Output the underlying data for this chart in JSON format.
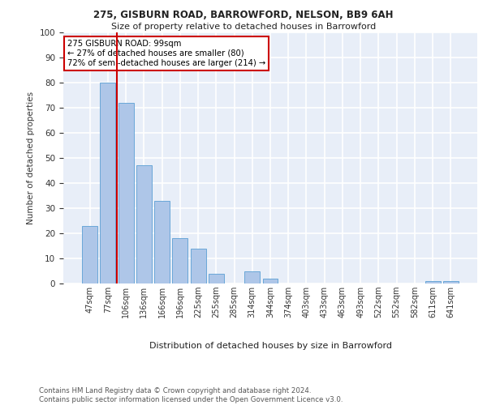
{
  "title1": "275, GISBURN ROAD, BARROWFORD, NELSON, BB9 6AH",
  "title2": "Size of property relative to detached houses in Barrowford",
  "xlabel": "Distribution of detached houses by size in Barrowford",
  "ylabel": "Number of detached properties",
  "categories": [
    "47sqm",
    "77sqm",
    "106sqm",
    "136sqm",
    "166sqm",
    "196sqm",
    "225sqm",
    "255sqm",
    "285sqm",
    "314sqm",
    "344sqm",
    "374sqm",
    "403sqm",
    "433sqm",
    "463sqm",
    "493sqm",
    "522sqm",
    "552sqm",
    "582sqm",
    "611sqm",
    "641sqm"
  ],
  "values": [
    23,
    80,
    72,
    47,
    33,
    18,
    14,
    4,
    0,
    5,
    2,
    0,
    0,
    0,
    0,
    0,
    0,
    0,
    0,
    1,
    1
  ],
  "bar_color": "#aec6e8",
  "bar_edge_color": "#5a9fd4",
  "vline_color": "#cc0000",
  "annotation_text": "275 GISBURN ROAD: 99sqm\n← 27% of detached houses are smaller (80)\n72% of semi-detached houses are larger (214) →",
  "annotation_box_color": "#ffffff",
  "annotation_box_edge": "#cc0000",
  "ylim": [
    0,
    100
  ],
  "yticks": [
    0,
    10,
    20,
    30,
    40,
    50,
    60,
    70,
    80,
    90,
    100
  ],
  "footer": "Contains HM Land Registry data © Crown copyright and database right 2024.\nContains public sector information licensed under the Open Government Licence v3.0.",
  "background_color": "#e8eef8",
  "grid_color": "#ffffff"
}
